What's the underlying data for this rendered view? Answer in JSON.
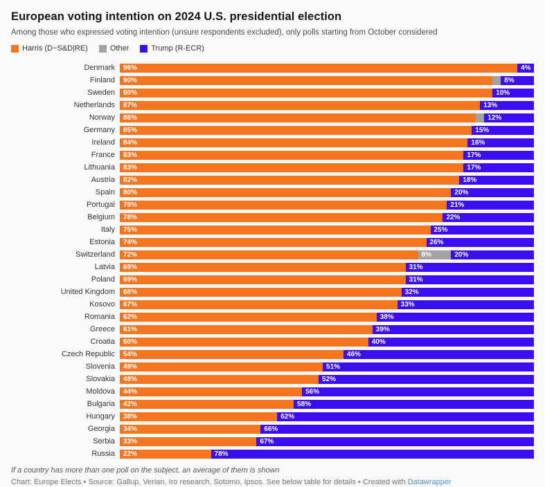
{
  "header": {
    "title": "European voting intention on 2024 U.S. presidential election",
    "subtitle": "Among those who expressed voting intention (unsure respondents excluded), only polls starting from October considered"
  },
  "legend": [
    {
      "label": "Harris (D~S&D|RE)",
      "color": "#f8751f"
    },
    {
      "label": "Other",
      "color": "#a2a2a2"
    },
    {
      "label": "Trump (R-ECR)",
      "color": "#3a0df2"
    }
  ],
  "chart_data": {
    "type": "bar",
    "orientation": "horizontal",
    "stacked": true,
    "unit": "%",
    "xlim": [
      0,
      100
    ],
    "grid": false,
    "legend_position": "top",
    "title": "European voting intention on 2024 U.S. presidential election",
    "categories": [
      "Denmark",
      "Finland",
      "Sweden",
      "Netherlands",
      "Norway",
      "Germany",
      "Ireland",
      "France",
      "Lithuania",
      "Austria",
      "Spain",
      "Portugal",
      "Belgium",
      "Italy",
      "Estonia",
      "Switzerland",
      "Latvia",
      "Poland",
      "United Kingdom",
      "Kosovo",
      "Romania",
      "Greece",
      "Croatia",
      "Czech Republic",
      "Slovenia",
      "Slovakia",
      "Moldova",
      "Bulgaria",
      "Hungary",
      "Georgia",
      "Serbia",
      "Russia"
    ],
    "series": [
      {
        "name": "Harris (D~S&D|RE)",
        "color": "#f8751f",
        "values": [
          96,
          90,
          90,
          87,
          86,
          85,
          84,
          83,
          83,
          82,
          80,
          79,
          78,
          75,
          74,
          72,
          69,
          69,
          68,
          67,
          62,
          61,
          60,
          54,
          49,
          48,
          44,
          42,
          38,
          34,
          33,
          22
        ]
      },
      {
        "name": "Other",
        "color": "#a2a2a2",
        "values": [
          0,
          2,
          0,
          0,
          2,
          0,
          0,
          0,
          0,
          0,
          0,
          0,
          0,
          0,
          0,
          8,
          0,
          0,
          0,
          0,
          0,
          0,
          0,
          0,
          0,
          0,
          0,
          0,
          0,
          0,
          0,
          0
        ]
      },
      {
        "name": "Trump (R-ECR)",
        "color": "#3a0df2",
        "values": [
          4,
          8,
          10,
          13,
          12,
          15,
          16,
          17,
          17,
          18,
          20,
          21,
          22,
          25,
          26,
          20,
          31,
          31,
          32,
          33,
          38,
          39,
          40,
          46,
          51,
          52,
          56,
          58,
          62,
          66,
          67,
          78
        ]
      }
    ],
    "data_label_rule": "segment labeled with value% when value >= 4"
  },
  "footer": {
    "note": "If a country has more than one poll on the subject, an average of them is shown",
    "byline_prefix": "Chart: Europe Elects • Source: Gallup, Verian, Iro research, Sotomo, Ipsos. See below table for details • Created with ",
    "link_label": "Datawrapper"
  }
}
